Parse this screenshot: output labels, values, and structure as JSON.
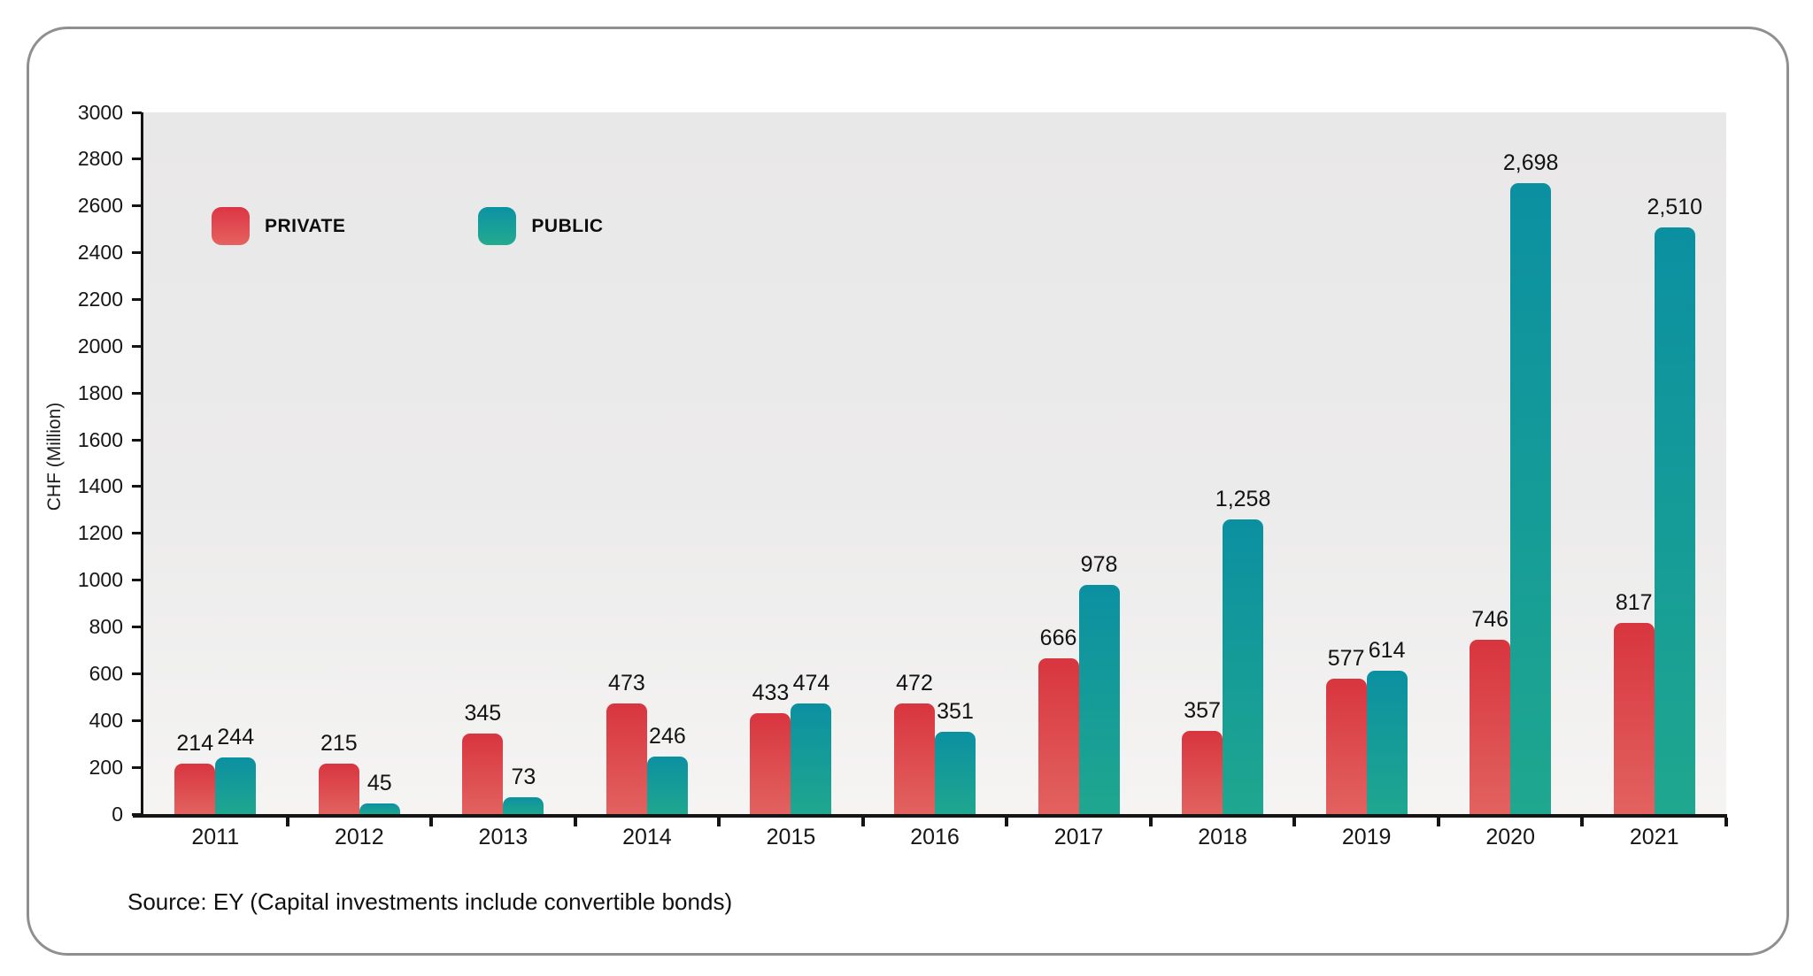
{
  "chart_data": {
    "type": "bar",
    "title": "",
    "xlabel": "",
    "ylabel": "CHF (Million)",
    "ylim": [
      0,
      3000
    ],
    "ytick_step": 200,
    "grid": false,
    "legend_position": "top-left",
    "categories": [
      "2011",
      "2012",
      "2013",
      "2014",
      "2015",
      "2016",
      "2017",
      "2018",
      "2019",
      "2020",
      "2021"
    ],
    "series": [
      {
        "name": "PRIVATE",
        "values": [
          214,
          215,
          345,
          473,
          433,
          472,
          666,
          357,
          577,
          746,
          817
        ],
        "labels": [
          "214",
          "215",
          "345",
          "473",
          "433",
          "472",
          "666",
          "357",
          "577",
          "746",
          "817"
        ],
        "color_top": "#d8353f",
        "color_bottom": "#e26260"
      },
      {
        "name": "PUBLIC",
        "values": [
          244,
          45,
          73,
          246,
          474,
          351,
          978,
          1258,
          614,
          2698,
          2510
        ],
        "labels": [
          "244",
          "45",
          "73",
          "246",
          "474",
          "351",
          "978",
          "1,258",
          "614",
          "2,698",
          "2,510"
        ],
        "color_top": "#0b90a1",
        "color_bottom": "#1fa78f"
      }
    ],
    "source": "Source: EY (Capital investments include convertible bonds)"
  }
}
